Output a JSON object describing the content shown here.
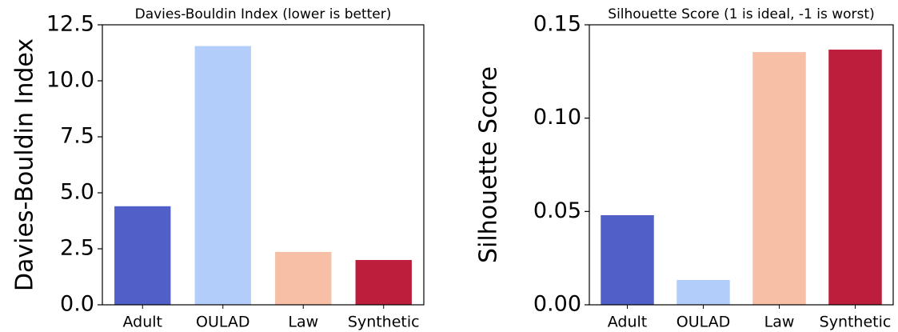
{
  "chart_data": [
    {
      "type": "bar",
      "title": "Davies-Bouldin Index (lower is better)",
      "ylabel": "Davies-Bouldin Index",
      "categories": [
        "Adult",
        "OULAD",
        "Law",
        "Synthetic"
      ],
      "values": [
        4.4,
        11.55,
        2.36,
        2.0
      ],
      "colors": [
        "#5060c8",
        "#b3cdfb",
        "#f6bfa6",
        "#bc1e3c"
      ],
      "ylim": [
        0,
        12.5
      ],
      "yticks": [
        {
          "value": 0,
          "label": "0.0"
        },
        2.5,
        {
          "value": 5,
          "label": "5.0"
        },
        7.5,
        {
          "value": 10,
          "label": "10.0"
        },
        12.5
      ]
    },
    {
      "type": "bar",
      "title": "Silhouette Score (1 is ideal, -1 is worst)",
      "ylabel": "Silhouette Score",
      "categories": [
        "Adult",
        "OULAD",
        "Law",
        "Synthetic"
      ],
      "values": [
        0.048,
        0.0133,
        0.1354,
        0.1367
      ],
      "colors": [
        "#5060c8",
        "#b3cdfb",
        "#f6bfa6",
        "#bc1e3c"
      ],
      "ylim": [
        0,
        0.15
      ],
      "yticks": [
        {
          "value": 0,
          "label": "0.00"
        },
        0.05,
        {
          "value": 0.1,
          "label": "0.10"
        },
        0.15
      ]
    }
  ]
}
